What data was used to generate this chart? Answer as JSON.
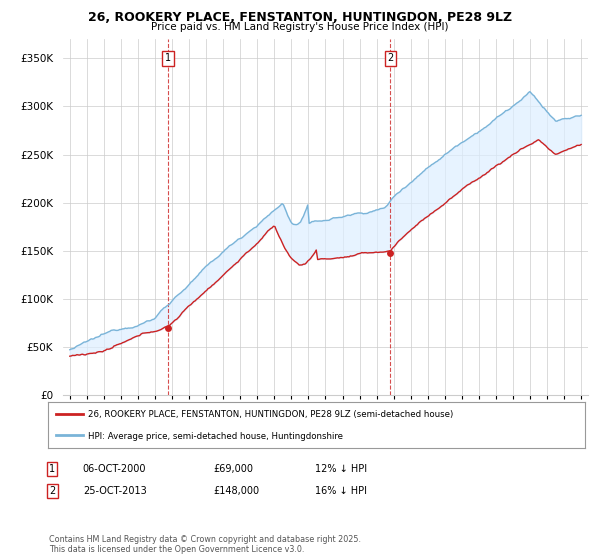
{
  "title_line1": "26, ROOKERY PLACE, FENSTANTON, HUNTINGDON, PE28 9LZ",
  "title_line2": "Price paid vs. HM Land Registry's House Price Index (HPI)",
  "ylim": [
    0,
    370000
  ],
  "yticks": [
    0,
    50000,
    100000,
    150000,
    200000,
    250000,
    300000,
    350000
  ],
  "ytick_labels": [
    "£0",
    "£50K",
    "£100K",
    "£150K",
    "£200K",
    "£250K",
    "£300K",
    "£350K"
  ],
  "hpi_color": "#7ab4d8",
  "price_color": "#cc2222",
  "vline_color": "#cc2222",
  "fill_color": "#ddeeff",
  "purchase1_date_x": 2000.76,
  "purchase1_price": 69000,
  "purchase2_date_x": 2013.81,
  "purchase2_price": 148000,
  "legend_label1": "26, ROOKERY PLACE, FENSTANTON, HUNTINGDON, PE28 9LZ (semi-detached house)",
  "legend_label2": "HPI: Average price, semi-detached house, Huntingdonshire",
  "footnote": "Contains HM Land Registry data © Crown copyright and database right 2025.\nThis data is licensed under the Open Government Licence v3.0.",
  "bg_color": "#ffffff",
  "grid_color": "#cccccc",
  "xlim_left": 1994.6,
  "xlim_right": 2025.4
}
